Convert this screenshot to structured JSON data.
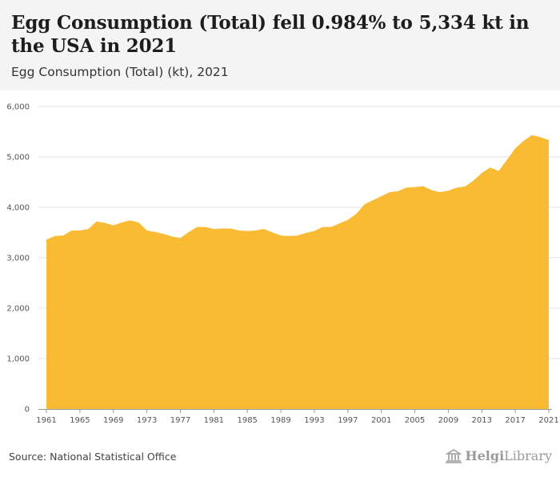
{
  "header": {
    "title": "Egg Consumption (Total) fell 0.984% to 5,334 kt in the USA in 2021",
    "subtitle": "Egg Consumption (Total) (kt), 2021"
  },
  "footer": {
    "source": "Source: National Statistical Office",
    "logo_text_1": "Helgi",
    "logo_text_2": "Library"
  },
  "colors": {
    "area": "#f8bb33",
    "grid": "#e3e3e3",
    "axis": "#999999"
  },
  "chart_data": {
    "type": "area",
    "title": "Egg Consumption (Total) (kt), 2021",
    "xlabel": "",
    "ylabel": "",
    "ylim": [
      0,
      6000
    ],
    "yticks": [
      0,
      1000,
      2000,
      3000,
      4000,
      5000,
      6000
    ],
    "ytick_labels": [
      "0",
      "1,000",
      "2,000",
      "3,000",
      "4,000",
      "5,000",
      "6,000"
    ],
    "xticks": [
      "1961",
      "1965",
      "1969",
      "1973",
      "1977",
      "1981",
      "1985",
      "1989",
      "1993",
      "1997",
      "2001",
      "2005",
      "2009",
      "2013",
      "2017",
      "2021"
    ],
    "x": [
      1961,
      1962,
      1963,
      1964,
      1965,
      1966,
      1967,
      1968,
      1969,
      1970,
      1971,
      1972,
      1973,
      1974,
      1975,
      1976,
      1977,
      1978,
      1979,
      1980,
      1981,
      1982,
      1983,
      1984,
      1985,
      1986,
      1987,
      1988,
      1989,
      1990,
      1991,
      1992,
      1993,
      1994,
      1995,
      1996,
      1997,
      1998,
      1999,
      2000,
      2001,
      2002,
      2003,
      2004,
      2005,
      2006,
      2007,
      2008,
      2009,
      2010,
      2011,
      2012,
      2013,
      2014,
      2015,
      2016,
      2017,
      2018,
      2019,
      2020,
      2021
    ],
    "values": [
      3360,
      3430,
      3440,
      3540,
      3540,
      3570,
      3720,
      3690,
      3640,
      3700,
      3740,
      3700,
      3540,
      3510,
      3470,
      3420,
      3390,
      3510,
      3610,
      3610,
      3570,
      3580,
      3580,
      3540,
      3530,
      3540,
      3570,
      3500,
      3440,
      3430,
      3440,
      3490,
      3530,
      3610,
      3610,
      3680,
      3750,
      3870,
      4060,
      4140,
      4220,
      4300,
      4320,
      4390,
      4400,
      4420,
      4340,
      4300,
      4330,
      4390,
      4410,
      4530,
      4680,
      4790,
      4720,
      4940,
      5170,
      5320,
      5430,
      5390,
      5334
    ],
    "series": [
      {
        "name": "Egg Consumption (Total) (kt)"
      }
    ]
  }
}
